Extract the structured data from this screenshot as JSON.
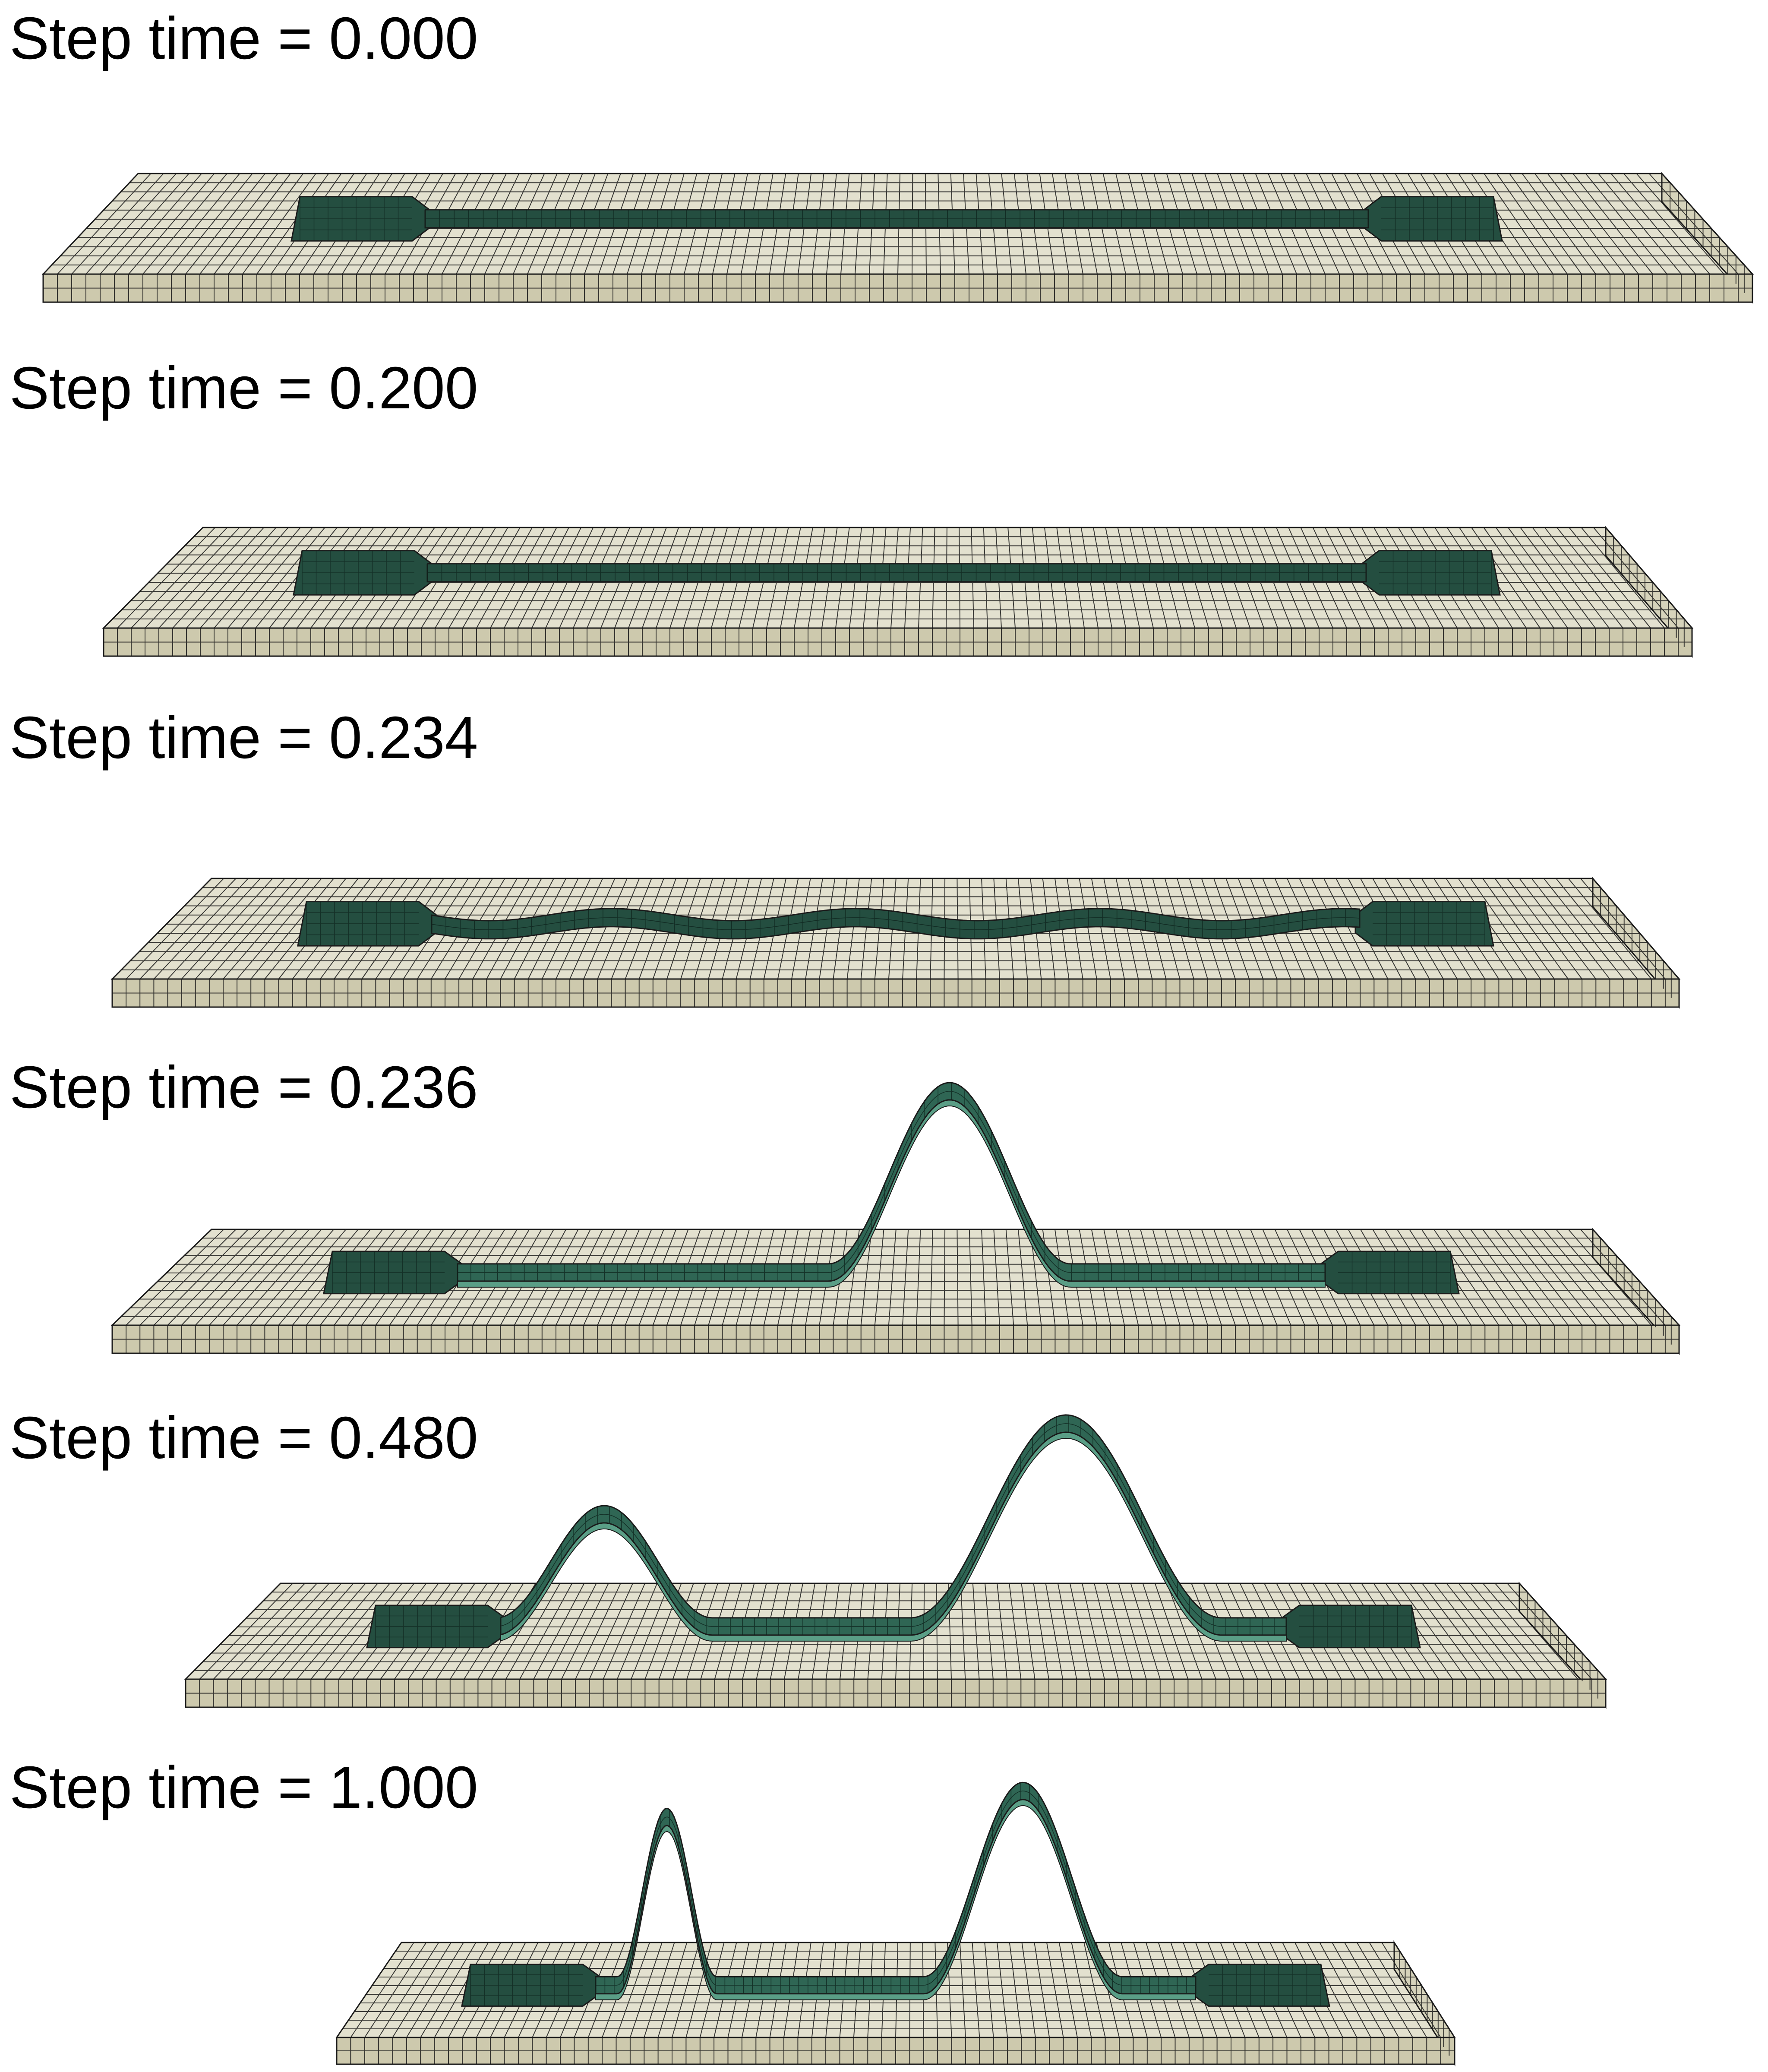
{
  "frames": [
    {
      "label": "Step time = 0.000"
    },
    {
      "label": "Step time = 0.200"
    },
    {
      "label": "Step time = 0.234"
    },
    {
      "label": "Step time = 0.236"
    },
    {
      "label": "Step time = 0.480"
    },
    {
      "label": "Step time = 1.000"
    }
  ],
  "colors": {
    "substrate_top": "#e3e1cf",
    "substrate_side": "#d6d3bb",
    "substrate_front": "#cdc9ad",
    "mesh_line": "#1a1a1a",
    "ribbon": "#244e40",
    "ribbon_raised": "#2f6654",
    "ribbon_underside": "#5a9e86",
    "background": "#ffffff"
  }
}
